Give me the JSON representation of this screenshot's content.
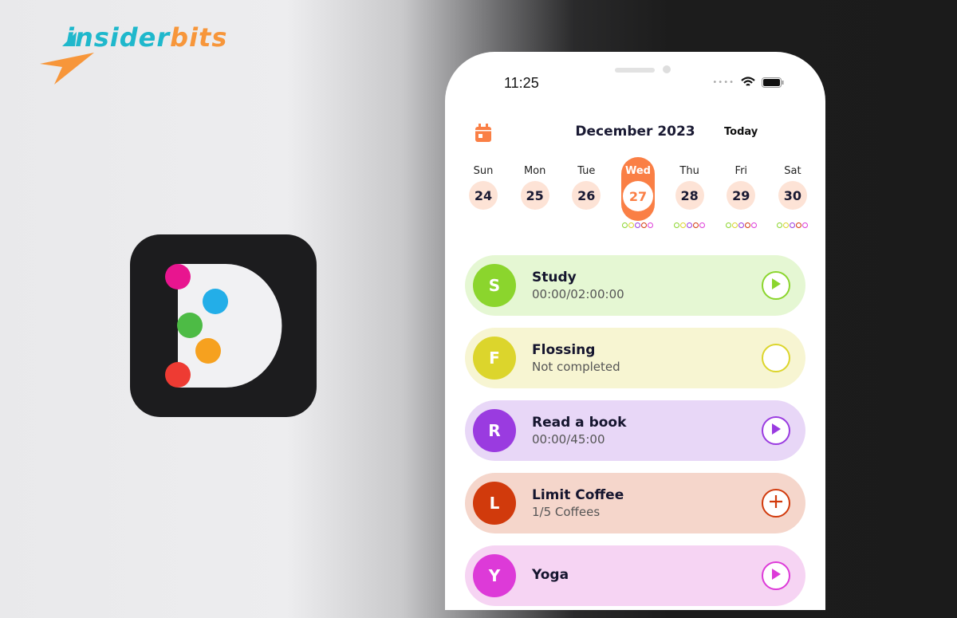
{
  "brand": {
    "part1": "insider",
    "part2": "bits"
  },
  "status_bar": {
    "time": "11:25"
  },
  "header": {
    "month": "December 2023",
    "today_label": "Today",
    "calendar_icon": "calendar-icon"
  },
  "days": [
    {
      "name": "Sun",
      "num": "24"
    },
    {
      "name": "Mon",
      "num": "25"
    },
    {
      "name": "Tue",
      "num": "26"
    },
    {
      "name": "Wed",
      "num": "27",
      "selected": true
    },
    {
      "name": "Thu",
      "num": "28"
    },
    {
      "name": "Fri",
      "num": "29"
    },
    {
      "name": "Sat",
      "num": "30"
    }
  ],
  "accent": "#fa7f45",
  "habits": [
    {
      "initial": "S",
      "name": "Study",
      "sub": "00:00/02:00:00",
      "action": "play",
      "bg": "#e5f7d3",
      "color": "#8bd52d"
    },
    {
      "initial": "F",
      "name": "Flossing",
      "sub": "Not completed",
      "action": "check",
      "bg": "#f7f5d2",
      "color": "#dcd52c"
    },
    {
      "initial": "R",
      "name": "Read a book",
      "sub": "00:00/45:00",
      "action": "play",
      "bg": "#e8d7f7",
      "color": "#9a3be0"
    },
    {
      "initial": "L",
      "name": "Limit Coffee",
      "sub": "1/5 Coffees",
      "action": "plus",
      "bg": "#f5d6cb",
      "color": "#d13a0c"
    },
    {
      "initial": "Y",
      "name": "Yoga",
      "sub": "",
      "action": "play",
      "bg": "#f6d4f3",
      "color": "#dd3ad8"
    }
  ]
}
